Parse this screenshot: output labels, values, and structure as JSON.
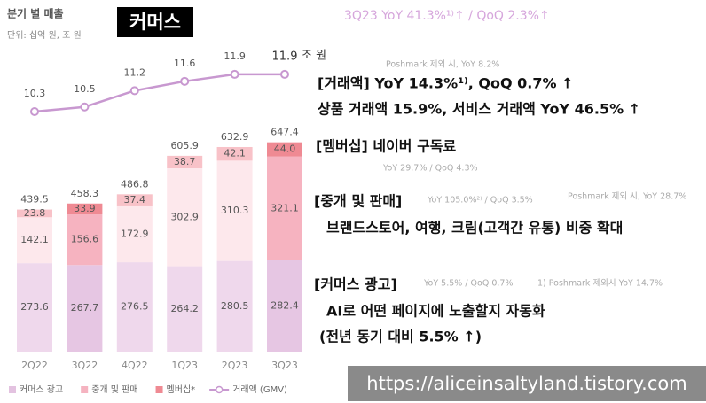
{
  "chart_data": {
    "type": "stacked_bar_line",
    "title": "분기 별 매출",
    "subtitle": "단위: 십억 원, 조 원",
    "badge": "커머스",
    "headline": "3Q23 YoY 41.3%¹⁾↑ / QoQ 2.3%↑",
    "categories": [
      "2Q22",
      "3Q22",
      "4Q22",
      "1Q23",
      "2Q23",
      "3Q23"
    ],
    "ylim": [
      0,
      700
    ],
    "series": [
      {
        "name": "커머스 광고",
        "color": "#e3c2e0",
        "colors": [
          "#efd8ec",
          "#e6c6e3",
          "#efd8ec",
          "#efd8ec",
          "#efd8ec",
          "#e6c6e3"
        ],
        "values": [
          273.6,
          267.7,
          276.5,
          264.2,
          280.5,
          282.4
        ]
      },
      {
        "name": "중개 및 판매",
        "color": "#f5b3c0",
        "colors": [
          "#fde8ec",
          "#f6b3c0",
          "#fde8ec",
          "#fde8ec",
          "#fde8ec",
          "#f6b3c0"
        ],
        "values": [
          142.1,
          156.6,
          172.9,
          302.9,
          310.3,
          321.1
        ]
      },
      {
        "name": "멤버십*",
        "color": "#ef8a93",
        "colors": [
          "#f8c2c8",
          "#ef8a93",
          "#f8c2c8",
          "#f8c2c8",
          "#f8c2c8",
          "#ef8a93"
        ],
        "values": [
          23.8,
          33.9,
          37.4,
          38.7,
          42.1,
          44.0
        ],
        "value_labels": [
          "23.8",
          "33.9",
          "37.4",
          "38.7",
          "42.1",
          "44.0"
        ]
      }
    ],
    "totals": [
      "439.5",
      "458.3",
      "486.8",
      "605.9",
      "632.9",
      "647.4"
    ],
    "line": {
      "name": "거래액 (GMV)",
      "color": "#c898d0",
      "axis": "y2",
      "values": [
        10.3,
        10.5,
        11.2,
        11.6,
        11.9,
        11.9
      ],
      "unit": "조 원"
    },
    "y2lim": [
      8,
      13
    ]
  },
  "notes": {
    "gmv_small": "Poshmark 제외 시, YoY 8.2%",
    "gmv_head": "[거래액]  YoY 14.3%¹⁾, QoQ 0.7% ↑",
    "gmv_line": "상품 거래액 15.9%, 서비스 거래액 YoY 46.5% ↑",
    "mem_head": "[멤버십] 네이버 구독료",
    "mem_small": "YoY 29.7% / QoQ 4.3%",
    "brk_head": "[중개 및 판매]",
    "brk_small": "YoY 105.0%²⁾ / QoQ 3.5%",
    "brk_small2": "Poshmark 제외 시, YoY 28.7%",
    "brk_line": "브랜드스토어, 여행, 크림(고객간 유통) 비중 확대",
    "ad_head": "[커머스 광고]",
    "ad_small": "YoY 5.5% / QoQ 0.7%",
    "ad_small2": "1) Poshmark 제외시 YoY 14.7%",
    "ad_line1": "AI로 어떤 페이지에 노출할지 자동화",
    "ad_line2": "(전년 동기 대비 5.5% ↑)",
    "watermark": "https://aliceinsaltyland.tistory.com"
  }
}
